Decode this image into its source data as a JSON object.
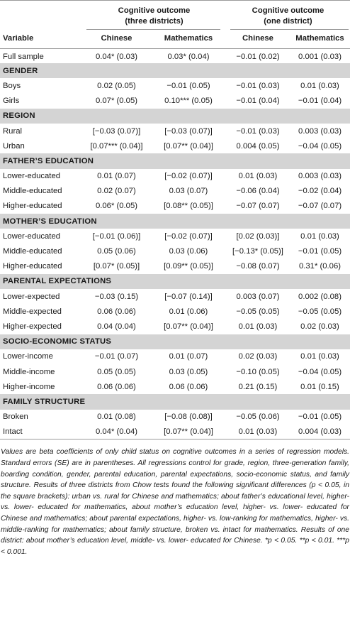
{
  "header": {
    "group1": "Cognitive outcome (three districts)",
    "group1_line1": "Cognitive outcome",
    "group1_line2": "(three districts)",
    "group2_line1": "Cognitive outcome",
    "group2_line2": "(one district)",
    "variable": "Variable",
    "col_chinese_1": "Chinese",
    "col_math_1": "Mathematics",
    "col_chinese_2": "Chinese",
    "col_math_2": "Mathematics"
  },
  "rows": [
    {
      "type": "data",
      "label": "Full sample",
      "v": [
        "0.04* (0.03)",
        "0.03* (0.04)",
        "−0.01 (0.02)",
        "0.001 (0.03)"
      ]
    },
    {
      "type": "section",
      "label": "GENDER"
    },
    {
      "type": "data",
      "label": "Boys",
      "v": [
        "0.02 (0.05)",
        "−0.01 (0.05)",
        "−0.01 (0.03)",
        "0.01 (0.03)"
      ]
    },
    {
      "type": "data",
      "label": "Girls",
      "v": [
        "0.07* (0.05)",
        "0.10*** (0.05)",
        "−0.01 (0.04)",
        "−0.01 (0.04)"
      ]
    },
    {
      "type": "section",
      "label": "REGION"
    },
    {
      "type": "data",
      "label": "Rural",
      "v": [
        "[−0.03 (0.07)]",
        "[−0.03 (0.07)]",
        "−0.01 (0.03)",
        "0.003 (0.03)"
      ]
    },
    {
      "type": "data",
      "label": "Urban",
      "v": [
        "[0.07*** (0.04)]",
        "[0.07** (0.04)]",
        "0.004 (0.05)",
        "−0.04 (0.05)"
      ]
    },
    {
      "type": "section",
      "label": "FATHER’S EDUCATION"
    },
    {
      "type": "data",
      "label": "Lower-educated",
      "v": [
        "0.01 (0.07)",
        "[−0.02 (0.07)]",
        "0.01 (0.03)",
        "0.003 (0.03)"
      ]
    },
    {
      "type": "data",
      "label": "Middle-educated",
      "v": [
        "0.02 (0.07)",
        "0.03 (0.07)",
        "−0.06 (0.04)",
        "−0.02 (0.04)"
      ]
    },
    {
      "type": "data",
      "label": "Higher-educated",
      "v": [
        "0.06* (0.05)",
        "[0.08** (0.05)]",
        "−0.07 (0.07)",
        "−0.07 (0.07)"
      ]
    },
    {
      "type": "section",
      "label": "MOTHER’S EDUCATION"
    },
    {
      "type": "data",
      "label": "Lower-educated",
      "v": [
        "[−0.01 (0.06)]",
        "[−0.02 (0.07)]",
        "[0.02 (0.03)]",
        "0.01 (0.03)"
      ]
    },
    {
      "type": "data",
      "label": "Middle-educated",
      "v": [
        "0.05 (0.06)",
        "0.03 (0.06)",
        "[−0.13* (0.05)]",
        "−0.01 (0.05)"
      ]
    },
    {
      "type": "data",
      "label": "Higher-educated",
      "v": [
        "[0.07* (0.05)]",
        "[0.09** (0.05)]",
        "−0.08 (0.07)",
        "0.31* (0.06)"
      ]
    },
    {
      "type": "section",
      "label": "PARENTAL EXPECTATIONS"
    },
    {
      "type": "data",
      "label": "Lower-expected",
      "v": [
        "−0.03 (0.15)",
        "[−0.07 (0.14)]",
        "0.003 (0.07)",
        "0.002 (0.08)"
      ]
    },
    {
      "type": "data",
      "label": "Middle-expected",
      "v": [
        "0.06 (0.06)",
        "0.01 (0.06)",
        "−0.05 (0.05)",
        "−0.05 (0.05)"
      ]
    },
    {
      "type": "data",
      "label": "Higher-expected",
      "v": [
        "0.04 (0.04)",
        "[0.07** (0.04)]",
        "0.01 (0.03)",
        "0.02 (0.03)"
      ]
    },
    {
      "type": "section",
      "label": "SOCIO-ECONOMIC STATUS"
    },
    {
      "type": "data",
      "label": "Lower-income",
      "v": [
        "−0.01 (0.07)",
        "0.01 (0.07)",
        "0.02 (0.03)",
        "0.01 (0.03)"
      ]
    },
    {
      "type": "data",
      "label": "Middle-income",
      "v": [
        "0.05 (0.05)",
        "0.03 (0.05)",
        "−0.10 (0.05)",
        "−0.04 (0.05)"
      ]
    },
    {
      "type": "data",
      "label": "Higher-income",
      "v": [
        "0.06 (0.06)",
        "0.06 (0.06)",
        "0.21 (0.15)",
        "0.01 (0.15)"
      ]
    },
    {
      "type": "section",
      "label": "FAMILY STRUCTURE"
    },
    {
      "type": "data",
      "label": "Broken",
      "v": [
        "0.01 (0.08)",
        "[−0.08 (0.08)]",
        "−0.05 (0.06)",
        "−0.01 (0.05)"
      ]
    },
    {
      "type": "data",
      "label": "Intact",
      "v": [
        "0.04* (0.04)",
        "[0.07** (0.04)]",
        "0.01 (0.03)",
        "0.004 (0.03)"
      ]
    }
  ],
  "footnote": "Values are beta coefficients of only child status on cognitive outcomes in a series of regression models. Standard errors (SE) are in parentheses. All regressions control for grade, region, three-generation family, boarding condition, gender, parental education, parental expectations, socio-economic status, and family structure. Results of three districts from Chow tests found the following significant differences (p < 0.05, in the square brackets): urban vs. rural for Chinese and mathematics; about father’s educational level, higher- vs. lower- educated for mathematics, about mother’s education level, higher- vs. lower- educated for Chinese and mathematics; about parental expectations, higher- vs. low-ranking for mathematics, higher- vs. middle-ranking for mathematics; about family structure, broken vs. intact for mathematics. Results of one district: about mother’s education level, middle- vs. lower- educated for Chinese. *p < 0.05. **p < 0.01. ***p < 0.001."
}
